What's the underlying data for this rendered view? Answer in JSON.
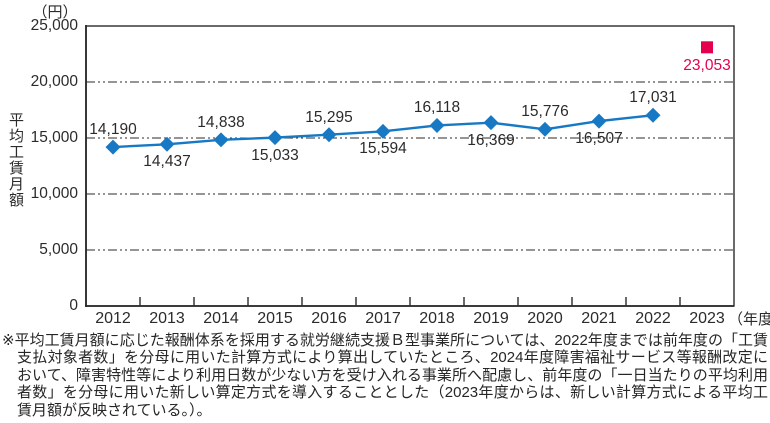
{
  "colors": {
    "line_blue": "#1779c4",
    "highlight_red": "#e5004f",
    "text": "#2b2b2b"
  },
  "chart_data": {
    "type": "line",
    "y_unit": "（円）",
    "ylabel": "平均工賃月額",
    "x_suffix": "（年度）",
    "ylim": [
      0,
      25000
    ],
    "grid": "horizontal-dash-dot",
    "legend_position": "none",
    "yticks": [
      {
        "value": 0,
        "label": "0"
      },
      {
        "value": 5000,
        "label": "5,000"
      },
      {
        "value": 10000,
        "label": "10,000"
      },
      {
        "value": 15000,
        "label": "15,000"
      },
      {
        "value": 20000,
        "label": "20,000"
      },
      {
        "value": 25000,
        "label": "25,000"
      }
    ],
    "categories": [
      "2012",
      "2013",
      "2014",
      "2015",
      "2016",
      "2017",
      "2018",
      "2019",
      "2020",
      "2021",
      "2022",
      "2023"
    ],
    "series": [
      {
        "name": "average-monthly-wage-line",
        "draw": "line",
        "color": "#1779c4",
        "marker": "diamond",
        "points": [
          {
            "category": "2012",
            "value": 14190,
            "label": "14,190",
            "label_position": "above"
          },
          {
            "category": "2013",
            "value": 14437,
            "label": "14,437",
            "label_position": "below"
          },
          {
            "category": "2014",
            "value": 14838,
            "label": "14,838",
            "label_position": "above"
          },
          {
            "category": "2015",
            "value": 15033,
            "label": "15,033",
            "label_position": "below"
          },
          {
            "category": "2016",
            "value": 15295,
            "label": "15,295",
            "label_position": "above"
          },
          {
            "category": "2017",
            "value": 15594,
            "label": "15,594",
            "label_position": "below"
          },
          {
            "category": "2018",
            "value": 16118,
            "label": "16,118",
            "label_position": "above"
          },
          {
            "category": "2019",
            "value": 16369,
            "label": "16,369",
            "label_position": "below"
          },
          {
            "category": "2020",
            "value": 15776,
            "label": "15,776",
            "label_position": "above"
          },
          {
            "category": "2021",
            "value": 16507,
            "label": "16,507",
            "label_position": "below"
          },
          {
            "category": "2022",
            "value": 17031,
            "label": "17,031",
            "label_position": "above"
          }
        ]
      },
      {
        "name": "new-calculation-method-point",
        "draw": "point",
        "color": "#e5004f",
        "marker": "square",
        "points": [
          {
            "category": "2023",
            "value": 23053,
            "label": "23,053",
            "label_position": "below"
          }
        ]
      }
    ]
  },
  "footnote": "※平均工賃月額に応じた報酬体系を採用する就労継続支援Ｂ型事業所については、2022年度までは前年度の「工賃支払対象者数」を分母に用いた計算方式により算出していたところ、2024年度障害福祉サービス等報酬改定において、障害特性等により利用日数が少ない方を受け入れる事業所へ配慮し、前年度の「一日当たりの平均利用者数」を分母に用いた新しい算定方式を導入することとした（2023年度からは、新しい計算方式による平均工賃月額が反映されている。）。"
}
